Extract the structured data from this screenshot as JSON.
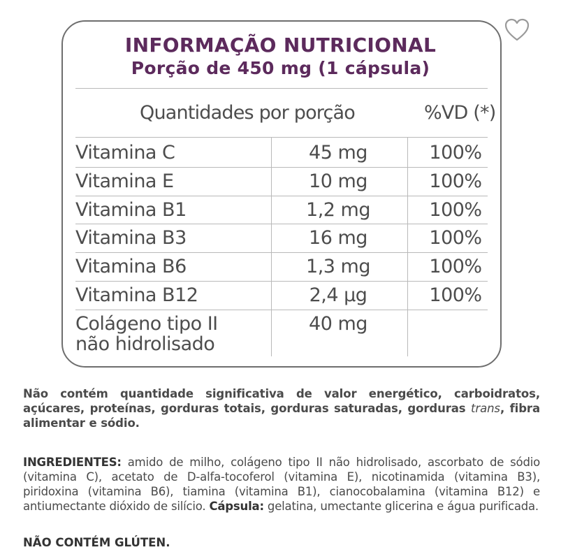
{
  "table": {
    "title": "INFORMAÇÃO NUTRICIONAL",
    "portion": "Porção de 450 mg (1 cápsula)",
    "header_quantity": "Quantidades por porção",
    "header_vd": "%VD (*)",
    "rows": [
      {
        "name": "Vitamina C",
        "amount": "45 mg",
        "vd": "100%"
      },
      {
        "name": "Vitamina E",
        "amount": "10 mg",
        "vd": "100%"
      },
      {
        "name": "Vitamina B1",
        "amount": "1,2 mg",
        "vd": "100%"
      },
      {
        "name": "Vitamina B3",
        "amount": "16 mg",
        "vd": "100%"
      },
      {
        "name": "Vitamina B6",
        "amount": "1,3 mg",
        "vd": "100%"
      },
      {
        "name": "Vitamina B12",
        "amount": "2,4 µg",
        "vd": "100%"
      },
      {
        "name_line1": "Colágeno tipo II",
        "name_line2": "não hidrolisado",
        "amount": "40 mg",
        "vd": ""
      }
    ]
  },
  "notes": {
    "not_contains_part1": "Não contém quantidade significativa de valor energético, carboidratos, açúcares, proteínas, gorduras totais, gorduras saturadas, gorduras",
    "not_contains_trans": "trans",
    "not_contains_part2": ", fibra alimentar e sódio.",
    "ingredients_label": "INGREDIENTES:",
    "ingredients_text": " amido de milho, colágeno tipo II não hidrolisado, ascorbato de sódio (vitamina C), acetato de D-alfa-tocoferol (vitamina E), nicotinamida (vitamina B3), piridoxina (vitamina B6), tiamina (vitamina B1), cianocobalamina (vitamina B12) e antiumectante dióxido de silício. ",
    "capsule_label": "Cápsula:",
    "capsule_text": " gelatina, umectante glicerina e água purificada.",
    "gluten": "NÃO CONTÉM GLÚTEN."
  },
  "icons": {
    "favorite": "heart-outline-icon"
  },
  "colors": {
    "title": "#5c2a5c",
    "text": "#4a4a4a",
    "border": "#6e6e6e"
  }
}
